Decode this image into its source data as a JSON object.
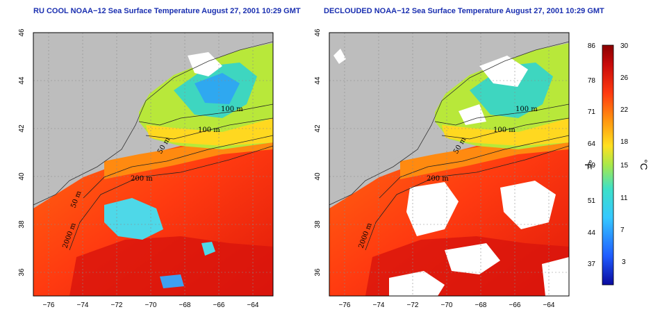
{
  "panels": [
    {
      "title": "RU COOL NOAA−12 Sea Surface Temperature August 27, 2001 10:29 GMT",
      "contours": [
        "100 m",
        "100 m",
        "50 m",
        "200 m",
        "2000 m",
        "50 m"
      ]
    },
    {
      "title": "DECLOUDED NOAA−12 Sea Surface Temperature August 27, 2001 10:29 GMT",
      "contours": [
        "100 m",
        "100 m",
        "50 m",
        "200 m",
        "2000 m"
      ]
    }
  ],
  "axes": {
    "x_ticks": [
      "−76",
      "−74",
      "−72",
      "−70",
      "−68",
      "−66",
      "−64"
    ],
    "y_ticks": [
      "46",
      "44",
      "42",
      "40",
      "38",
      "36"
    ]
  },
  "colorbar": {
    "f_ticks": [
      "86",
      "78",
      "71",
      "64",
      "59",
      "51",
      "44",
      "37"
    ],
    "c_ticks": [
      "30",
      "26",
      "22",
      "18",
      "15",
      "11",
      "7",
      "3"
    ],
    "f_unit": "°F",
    "c_unit": "°C",
    "colors": [
      "#0a0a9e",
      "#1f5cff",
      "#35c8ff",
      "#3de0c8",
      "#a8e84a",
      "#ffe020",
      "#ff9a10",
      "#ff3a10",
      "#c80a0a",
      "#8a0000"
    ]
  }
}
